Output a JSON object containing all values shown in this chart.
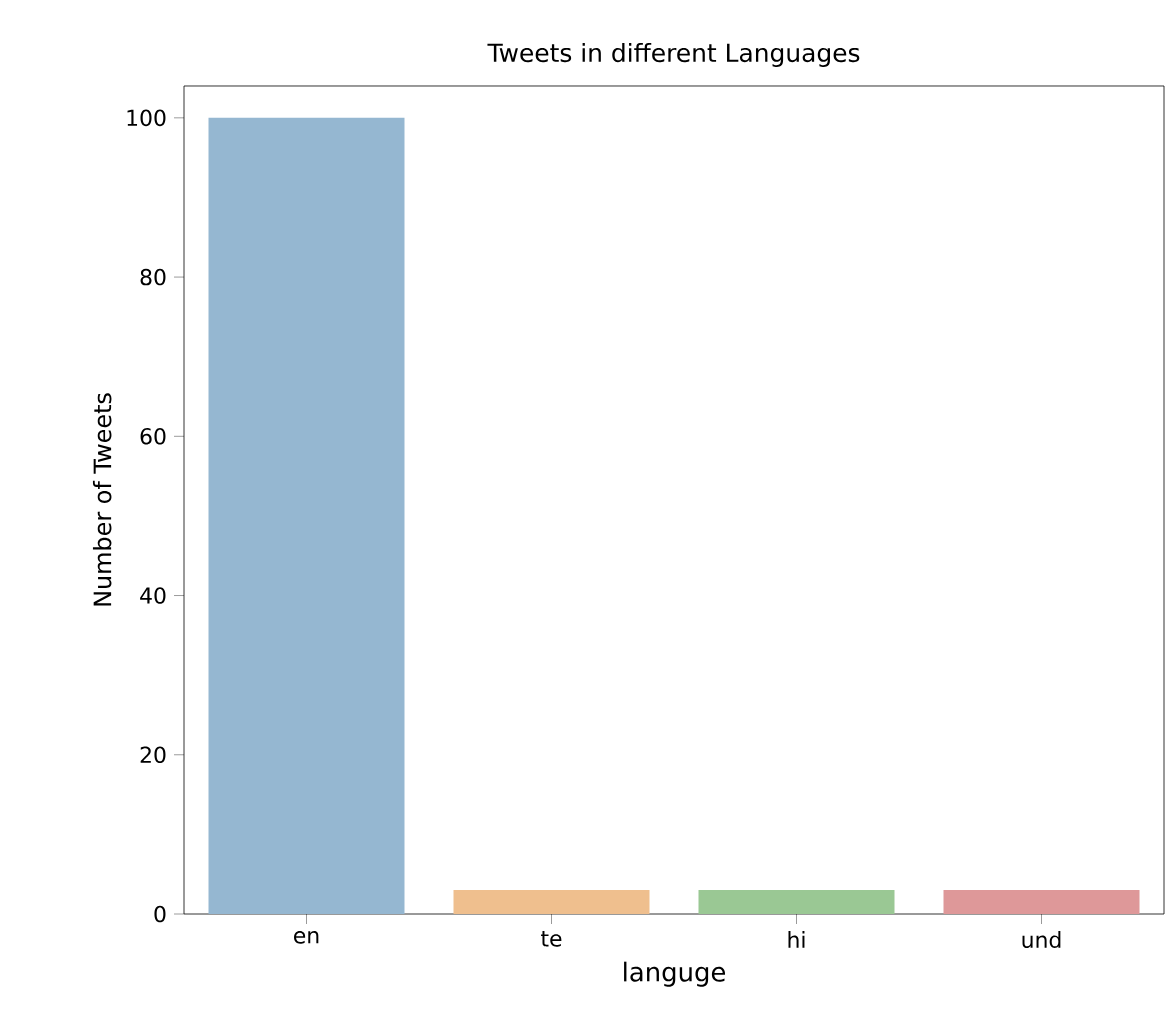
{
  "chart_data": {
    "type": "bar",
    "title": "Tweets in different Languages",
    "xlabel": "languge",
    "ylabel": "Number of Tweets",
    "categories": [
      "en",
      "te",
      "hi",
      "und"
    ],
    "values": [
      100,
      3,
      3,
      3
    ],
    "colors": [
      "#95b7d1",
      "#efbf8e",
      "#9ac894",
      "#de9899"
    ],
    "ylim": [
      0,
      104
    ],
    "yticks": [
      0,
      20,
      40,
      60,
      80,
      100
    ],
    "grid": false
  }
}
